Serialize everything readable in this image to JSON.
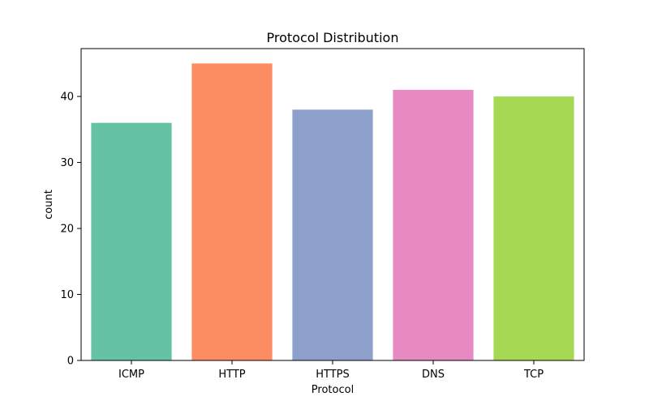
{
  "chart_data": {
    "type": "bar",
    "title": "Protocol Distribution",
    "xlabel": "Protocol",
    "ylabel": "count",
    "categories": [
      "ICMP",
      "HTTP",
      "HTTPS",
      "DNS",
      "TCP"
    ],
    "values": [
      36,
      45,
      38,
      41,
      40
    ],
    "colors": [
      "#66c2a5",
      "#fc8d62",
      "#8da0cb",
      "#e78ac3",
      "#a6d854"
    ],
    "ylim": [
      0,
      47.25
    ],
    "yticks": [
      0,
      10,
      20,
      30,
      40
    ],
    "grid": false,
    "legend": "none"
  }
}
